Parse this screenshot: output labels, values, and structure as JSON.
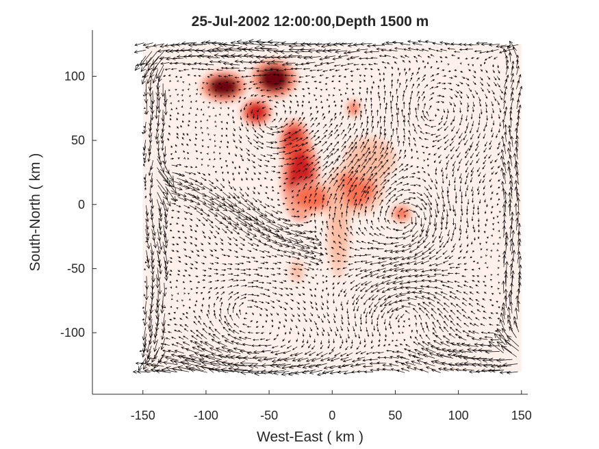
{
  "chart_data": {
    "type": "quiver",
    "title": "25-Jul-2002 12:00:00,Depth 1500 m",
    "xlabel": "West-East ( km )",
    "ylabel": "South-North ( km )",
    "xlim": [
      -190,
      155
    ],
    "ylim": [
      -148,
      136
    ],
    "xticks": [
      -150,
      -100,
      -50,
      0,
      50,
      100,
      150
    ],
    "yticks": [
      -100,
      -50,
      0,
      50,
      100
    ],
    "xtick_labels": [
      "-150",
      "-100",
      "-50",
      "0",
      "50",
      "100",
      "150"
    ],
    "ytick_labels": [
      "-100",
      "-50",
      "0",
      "50",
      "100"
    ],
    "grid": false,
    "colormap": [
      "#fff5f0",
      "#fcbba1",
      "#fb6a4a",
      "#cb181d",
      "#67000d"
    ],
    "arrow_color": "#000000",
    "background_field_extent": {
      "x": [
        -150,
        150
      ],
      "y": [
        -130,
        125
      ]
    },
    "hotspots": [
      {
        "x": -86,
        "y": 92,
        "rx": 12,
        "ry": 8,
        "intensity": 1.0
      },
      {
        "x": -46,
        "y": 98,
        "rx": 12,
        "ry": 10,
        "intensity": 1.0
      },
      {
        "x": -60,
        "y": 72,
        "rx": 8,
        "ry": 7,
        "intensity": 0.8
      },
      {
        "x": -30,
        "y": 48,
        "rx": 8,
        "ry": 12,
        "intensity": 0.85
      },
      {
        "x": -25,
        "y": 20,
        "rx": 10,
        "ry": 22,
        "intensity": 0.85
      },
      {
        "x": -15,
        "y": 5,
        "rx": 14,
        "ry": 9,
        "intensity": 0.6
      },
      {
        "x": 18,
        "y": 12,
        "rx": 16,
        "ry": 14,
        "intensity": 0.6
      },
      {
        "x": 30,
        "y": 35,
        "rx": 14,
        "ry": 12,
        "intensity": 0.3
      },
      {
        "x": 17,
        "y": 75,
        "rx": 4,
        "ry": 5,
        "intensity": 0.5
      },
      {
        "x": 55,
        "y": -7,
        "rx": 6,
        "ry": 5,
        "intensity": 0.5
      },
      {
        "x": 5,
        "y": -20,
        "rx": 6,
        "ry": 25,
        "intensity": 0.25
      },
      {
        "x": -28,
        "y": -52,
        "rx": 4,
        "ry": 6,
        "intensity": 0.3
      }
    ],
    "flow_features": [
      {
        "type": "jet",
        "x": [
          -140,
          -15
        ],
        "y": [
          25,
          -35
        ],
        "u": 1,
        "v": -0.45,
        "strength": 1.0
      },
      {
        "type": "jet",
        "x": [
          -175,
          150
        ],
        "y": [
          118,
          132
        ],
        "u": -1,
        "v": 0.05,
        "strength": 1.0
      },
      {
        "type": "jet",
        "x": [
          -175,
          150
        ],
        "y": [
          -135,
          -120
        ],
        "u": -1,
        "v": -0.02,
        "strength": 1.0
      },
      {
        "type": "jet",
        "x": [
          -148,
          -132
        ],
        "y": [
          -120,
          120
        ],
        "u": 0,
        "v": -1,
        "strength": 0.9
      },
      {
        "type": "jet",
        "x": [
          135,
          150
        ],
        "y": [
          -120,
          120
        ],
        "u": 0,
        "v": 1,
        "strength": 0.9
      },
      {
        "type": "eddy",
        "x": 60,
        "y": -10,
        "r": 50,
        "sense": -1,
        "strength": 0.7
      },
      {
        "type": "eddy",
        "x": -50,
        "y": 65,
        "r": 35,
        "sense": 1,
        "strength": 0.6
      },
      {
        "type": "eddy",
        "x": 80,
        "y": 70,
        "r": 40,
        "sense": -1,
        "strength": 0.5
      },
      {
        "type": "eddy",
        "x": 60,
        "y": -85,
        "r": 40,
        "sense": 1,
        "strength": 0.5
      },
      {
        "type": "eddy",
        "x": -70,
        "y": -85,
        "r": 45,
        "sense": -1,
        "strength": 0.5
      }
    ]
  }
}
